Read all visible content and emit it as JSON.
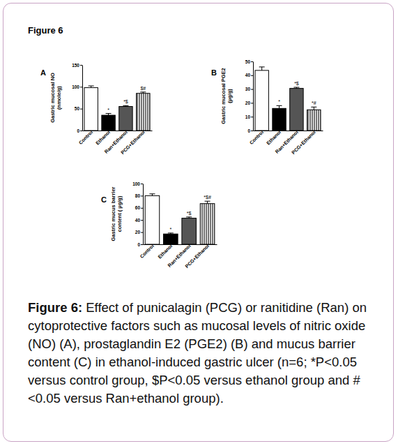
{
  "figure_label": "Figure 6",
  "caption": {
    "label": "Figure 6:",
    "text": "Effect of punicalagin (PCG) or ranitidine (Ran) on cytoprotective factors such as mucosal levels of nitric oxide (NO) (A), prostaglandin E2 (PGE2) (B) and mucus barrier content (C) in ethanol-induced gastric ulcer (n=6; *P<0.05 versus control group, $P<0.05 versus ethanol group and #<0.05 versus Ran+ethanol group)."
  },
  "chart_data": [
    {
      "type": "bar",
      "title": "A",
      "ylabel": [
        "Gastric mucosal NO",
        "(nmole/g)"
      ],
      "categories": [
        "Control",
        "Ethanol",
        "Ran+Ethanol",
        "PCG+Ethanol"
      ],
      "values": [
        98,
        35,
        55,
        85
      ],
      "errors": [
        4,
        4,
        2,
        3
      ],
      "annotations": [
        null,
        "*",
        "*$",
        "$#"
      ],
      "colors": [
        "#ffffff",
        "#000000",
        "#555555",
        "#ffffff"
      ],
      "ylim": [
        0,
        150
      ],
      "yticks": [
        0,
        50,
        100,
        150
      ]
    },
    {
      "type": "bar",
      "title": "B",
      "ylabel": [
        "Gastric mucosal PGE2",
        "(µg/g)"
      ],
      "categories": [
        "Control",
        "Ethanol",
        "Ran+Ethanol",
        "PCG+Ethanol"
      ],
      "values": [
        43.5,
        16,
        30.5,
        15
      ],
      "errors": [
        2.5,
        2,
        0.8,
        2
      ],
      "annotations": [
        null,
        "*",
        "*$",
        "*#"
      ],
      "colors": [
        "#ffffff",
        "#000000",
        "#555555",
        "#ffffff"
      ],
      "ylim": [
        0,
        50
      ],
      "yticks": [
        0,
        10,
        20,
        30,
        40,
        50
      ]
    },
    {
      "type": "bar",
      "title": "C",
      "ylabel": [
        "Gastric mucus barrier",
        "content ( µg/g)"
      ],
      "categories": [
        "Control",
        "Ethanol",
        "Ran+Ethanol",
        "PCG+Ethanol"
      ],
      "values": [
        80,
        17,
        43,
        67
      ],
      "errors": [
        3,
        1.5,
        2,
        4
      ],
      "annotations": [
        null,
        "*",
        "*$",
        "*$#"
      ],
      "colors": [
        "#ffffff",
        "#000000",
        "#555555",
        "#ffffff"
      ],
      "ylim": [
        0,
        100
      ],
      "yticks": [
        0,
        20,
        40,
        60,
        80,
        100
      ]
    }
  ]
}
